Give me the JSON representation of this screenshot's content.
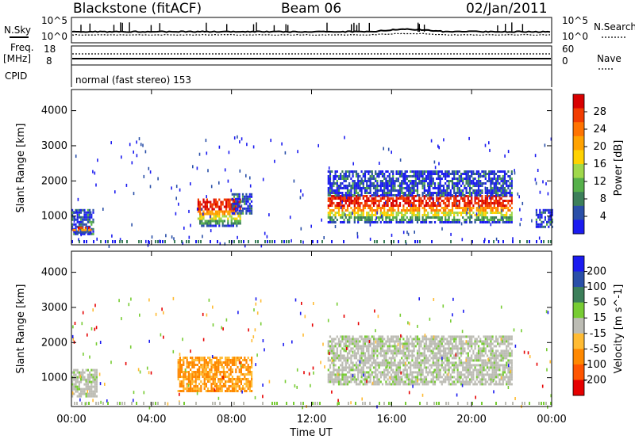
{
  "header": {
    "station": "Blackstone (fitACF)",
    "beam": "Beam 06",
    "date": "02/Jan/2011"
  },
  "top_panels": {
    "nsky_label": "N.Sky",
    "nsearch_label": "N.Search",
    "freq_label_1": "Freq.",
    "freq_label_2": "[MHz]",
    "nave_label": "Nave",
    "cpid_label": "CPID",
    "cpid_text": "normal (fast stereo) 153",
    "noise_left_ticks": [
      "10^5",
      "10^0"
    ],
    "noise_right_ticks": [
      "10^5",
      "10^0"
    ],
    "freq_left_ticks": [
      "18",
      "8"
    ],
    "nave_right_ticks": [
      "60",
      "0"
    ]
  },
  "chart_data": [
    {
      "type": "heatmap",
      "title": "Power",
      "xlabel": "",
      "ylabel": "Slant Range [km]",
      "x_ticks": [
        "00:00",
        "04:00",
        "08:00",
        "12:00",
        "16:00",
        "20:00",
        "00:00"
      ],
      "y_ticks": [
        "1000",
        "2000",
        "3000",
        "4000"
      ],
      "ylim": [
        180,
        4600
      ],
      "xlim_hours": [
        0,
        24
      ],
      "colorbar": {
        "label": "Power [dB]",
        "ticks": [
          "4",
          "8",
          "12",
          "16",
          "20",
          "24",
          "28"
        ],
        "colors": [
          "#1b1bf0",
          "#2a4fa8",
          "#3c7f5a",
          "#56b04a",
          "#a0d84b",
          "#ffd200",
          "#ffa200",
          "#ff7300",
          "#f23c00",
          "#d80000"
        ]
      },
      "regions": [
        {
          "t_start": 0.0,
          "t_end": 1.1,
          "range_low": 500,
          "range_high": 1200,
          "level": "low"
        },
        {
          "t_start": 0.05,
          "t_end": 1.0,
          "range_low": 550,
          "range_high": 700,
          "level": "high"
        },
        {
          "t_start": 6.3,
          "t_end": 8.4,
          "range_low": 700,
          "range_high": 1500,
          "level": "high"
        },
        {
          "t_start": 8.0,
          "t_end": 9.0,
          "range_low": 1050,
          "range_high": 1650,
          "level": "low"
        },
        {
          "t_start": 12.8,
          "t_end": 22.0,
          "range_low": 800,
          "range_high": 1600,
          "level": "high"
        },
        {
          "t_start": 12.8,
          "t_end": 22.0,
          "range_low": 1600,
          "range_high": 2300,
          "level": "low"
        },
        {
          "t_start": 23.2,
          "t_end": 24.0,
          "range_low": 700,
          "range_high": 1200,
          "level": "low"
        }
      ]
    },
    {
      "type": "heatmap",
      "title": "Velocity",
      "xlabel": "Time UT",
      "ylabel": "Slant Range [km]",
      "x_ticks": [
        "00:00",
        "04:00",
        "08:00",
        "12:00",
        "16:00",
        "20:00",
        "00:00"
      ],
      "y_ticks": [
        "1000",
        "2000",
        "3000",
        "4000"
      ],
      "ylim": [
        180,
        4600
      ],
      "xlim_hours": [
        0,
        24
      ],
      "colorbar": {
        "label": "Velocity [m s^-1]",
        "ticks": [
          "200",
          "100",
          "50",
          "15",
          "-15",
          "-50",
          "-100",
          "-200"
        ],
        "colors": [
          "#1b1bf0",
          "#2a4fa8",
          "#3c7f5a",
          "#77cc33",
          "#bcbcb4",
          "#ffbb33",
          "#ff8800",
          "#ff5500",
          "#e60000"
        ]
      },
      "regions": [
        {
          "t_start": 0.0,
          "t_end": 1.3,
          "range_low": 500,
          "range_high": 1250,
          "level": "ground"
        },
        {
          "t_start": 5.3,
          "t_end": 9.0,
          "range_low": 600,
          "range_high": 1600,
          "level": "negative"
        },
        {
          "t_start": 12.8,
          "t_end": 22.0,
          "range_low": 800,
          "range_high": 2200,
          "level": "ground"
        }
      ]
    }
  ]
}
